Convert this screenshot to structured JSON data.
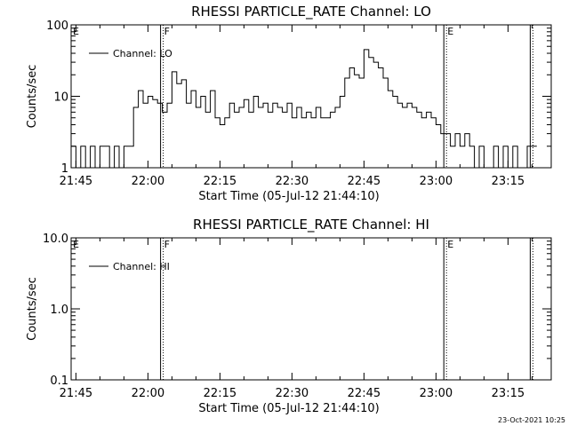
{
  "footer": {
    "timestamp": "23-Oct-2021 10:25"
  },
  "chart_data": [
    {
      "type": "line",
      "title": "RHESSI PARTICLE_RATE Channel: LO",
      "xlabel": "Start Time (05-Jul-12 21:44:10)",
      "ylabel": "Counts/sec",
      "yscale": "log",
      "xlim": [
        "21:44",
        "23:24"
      ],
      "ylim": [
        1,
        100
      ],
      "x_ticks": [
        "21:45",
        "22:00",
        "22:15",
        "22:30",
        "22:45",
        "23:00",
        "23:15"
      ],
      "y_ticks": [
        "1",
        "10",
        "100"
      ],
      "legend": {
        "position": "top-left",
        "entries": [
          "Channel: LO"
        ]
      },
      "markers": [
        {
          "time": "21:44",
          "label": "E",
          "style": "solid"
        },
        {
          "time": "22:03",
          "label": "F",
          "style": "dotted"
        },
        {
          "time": "23:02",
          "label": "E",
          "style": "dotted"
        },
        {
          "time": "23:20",
          "label": "",
          "style": "dotted"
        }
      ],
      "series": [
        {
          "name": "Channel: LO",
          "x": [
            "21:44",
            "21:45",
            "21:46",
            "21:47",
            "21:48",
            "21:49",
            "21:50",
            "21:51",
            "21:52",
            "21:53",
            "21:54",
            "21:55",
            "21:56",
            "21:57",
            "21:58",
            "21:59",
            "22:00",
            "22:01",
            "22:02",
            "22:03",
            "22:04",
            "22:05",
            "22:06",
            "22:07",
            "22:08",
            "22:09",
            "22:10",
            "22:11",
            "22:12",
            "22:13",
            "22:14",
            "22:15",
            "22:16",
            "22:17",
            "22:18",
            "22:19",
            "22:20",
            "22:21",
            "22:22",
            "22:23",
            "22:24",
            "22:25",
            "22:26",
            "22:27",
            "22:28",
            "22:29",
            "22:30",
            "22:31",
            "22:32",
            "22:33",
            "22:34",
            "22:35",
            "22:36",
            "22:37",
            "22:38",
            "22:39",
            "22:40",
            "22:41",
            "22:42",
            "22:43",
            "22:44",
            "22:45",
            "22:46",
            "22:47",
            "22:48",
            "22:49",
            "22:50",
            "22:51",
            "22:52",
            "22:53",
            "22:54",
            "22:55",
            "22:56",
            "22:57",
            "22:58",
            "22:59",
            "23:00",
            "23:01",
            "23:02",
            "23:03",
            "23:04",
            "23:05",
            "23:06",
            "23:07",
            "23:08",
            "23:09",
            "23:10",
            "23:11",
            "23:12",
            "23:13",
            "23:14",
            "23:15",
            "23:16",
            "23:17",
            "23:18",
            "23:19",
            "23:20"
          ],
          "y": [
            2,
            1,
            2,
            1,
            2,
            1,
            2,
            2,
            1,
            2,
            1,
            2,
            2,
            7,
            12,
            8,
            10,
            9,
            8,
            6,
            8,
            22,
            15,
            17,
            8,
            12,
            7,
            10,
            6,
            12,
            5,
            4,
            5,
            8,
            6,
            7,
            9,
            6,
            10,
            7,
            8,
            6,
            8,
            7,
            6,
            8,
            5,
            7,
            5,
            6,
            5,
            7,
            5,
            5,
            6,
            7,
            10,
            18,
            25,
            20,
            18,
            45,
            35,
            30,
            25,
            18,
            12,
            10,
            8,
            7,
            8,
            7,
            6,
            5,
            6,
            5,
            4,
            3,
            3,
            2,
            3,
            2,
            3,
            2,
            1,
            2,
            1,
            1,
            2,
            1,
            2,
            1,
            2,
            1,
            1,
            2,
            2
          ]
        }
      ]
    },
    {
      "type": "line",
      "title": "RHESSI PARTICLE_RATE Channel: HI",
      "xlabel": "Start Time (05-Jul-12 21:44:10)",
      "ylabel": "Counts/sec",
      "yscale": "log",
      "xlim": [
        "21:44",
        "23:24"
      ],
      "ylim": [
        0.1,
        10.0
      ],
      "x_ticks": [
        "21:45",
        "22:00",
        "22:15",
        "22:30",
        "22:45",
        "23:00",
        "23:15"
      ],
      "y_ticks": [
        "0.1",
        "1.0",
        "10.0"
      ],
      "legend": {
        "position": "top-left",
        "entries": [
          "Channel: HI"
        ]
      },
      "markers": [
        {
          "time": "21:44",
          "label": "E",
          "style": "solid"
        },
        {
          "time": "22:03",
          "label": "F",
          "style": "dotted"
        },
        {
          "time": "23:02",
          "label": "E",
          "style": "dotted"
        },
        {
          "time": "23:20",
          "label": "",
          "style": "dotted"
        }
      ],
      "series": [
        {
          "name": "Channel: HI",
          "x": [],
          "y": []
        }
      ]
    }
  ]
}
